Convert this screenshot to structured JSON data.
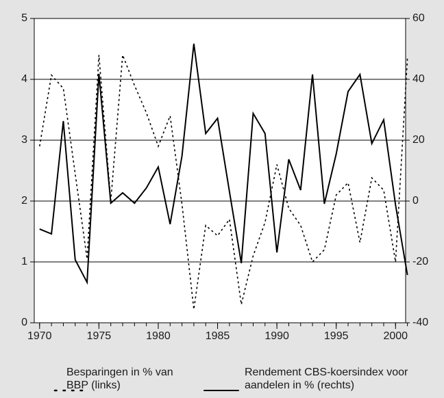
{
  "chart_data": {
    "type": "line",
    "x": [
      1970,
      1971,
      1972,
      1973,
      1974,
      1975,
      1976,
      1977,
      1978,
      1979,
      1980,
      1981,
      1982,
      1983,
      1984,
      1985,
      1986,
      1987,
      1988,
      1989,
      1990,
      1991,
      1992,
      1993,
      1994,
      1995,
      1996,
      1997,
      1998,
      1999,
      2000,
      2001
    ],
    "series": [
      {
        "name": "Besparingen in % van BBP (links)",
        "color": "#000000",
        "dash": "dotted",
        "axis": "y",
        "values": [
          2.9,
          4.07,
          3.85,
          2.45,
          1.05,
          4.4,
          2.0,
          4.4,
          3.9,
          3.45,
          2.9,
          3.4,
          1.95,
          0.22,
          1.6,
          1.43,
          1.7,
          0.3,
          1.1,
          1.65,
          2.6,
          1.88,
          1.6,
          1.0,
          1.2,
          2.1,
          2.3,
          1.32,
          2.38,
          2.18,
          1.0,
          4.35
        ]
      },
      {
        "name": "Rendement CBS-koersindex voor aandelen in % (rechts)",
        "color": "#000000",
        "dash": "solid",
        "axis": "y2",
        "values": [
          -9.2,
          -10.8,
          26.3,
          -19.3,
          -26.7,
          41.8,
          -0.7,
          2.7,
          -0.7,
          4.3,
          11.2,
          -7.6,
          14.8,
          51.7,
          22.2,
          27.2,
          3.1,
          -20.4,
          28.8,
          22.2,
          -16.9,
          13.7,
          3.6,
          41.6,
          -0.9,
          15.5,
          36,
          41.6,
          18.9,
          26.7,
          -1.3,
          -24.3
        ]
      }
    ],
    "xlim": [
      1969.55,
      2000.85
    ],
    "xticks": [
      1970,
      1975,
      1980,
      1985,
      1990,
      1995,
      2000
    ],
    "ylim": [
      0,
      5
    ],
    "yticks": [
      0,
      1,
      2,
      3,
      4,
      5
    ],
    "y2lim": [
      -40,
      60
    ],
    "y2ticks": [
      -40,
      -20,
      0,
      20,
      40,
      60
    ],
    "grid": true
  }
}
